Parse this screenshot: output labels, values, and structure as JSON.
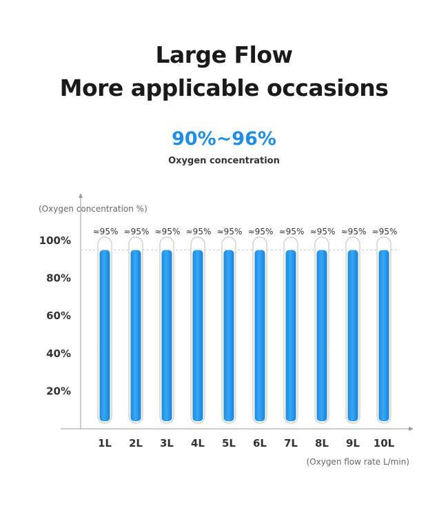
{
  "header": {
    "title_line1": "Large Flow",
    "title_line2": "More applicable occasions"
  },
  "highlight": {
    "range": "90%~96%",
    "label": "Oxygen concentration"
  },
  "chart_data": {
    "type": "bar",
    "categories": [
      "1L",
      "2L",
      "3L",
      "4L",
      "5L",
      "6L",
      "7L",
      "8L",
      "9L",
      "10L"
    ],
    "values": [
      95,
      95,
      95,
      95,
      95,
      95,
      95,
      95,
      95,
      95
    ],
    "data_labels": [
      "≈95%",
      "≈95%",
      "≈95%",
      "≈95%",
      "≈95%",
      "≈95%",
      "≈95%",
      "≈95%",
      "≈95%",
      "≈95%"
    ],
    "ylabel": "(Oxygen concentration %)",
    "xlabel": "(Oxygen flow rate L/min)",
    "yticks": [
      20,
      40,
      60,
      80,
      100
    ],
    "ytick_labels": [
      "20%",
      "40%",
      "60%",
      "80%",
      "100%"
    ],
    "ylim": [
      0,
      100
    ],
    "reference_line": 95,
    "bar_color": "#1e8ee6",
    "grid": false
  }
}
